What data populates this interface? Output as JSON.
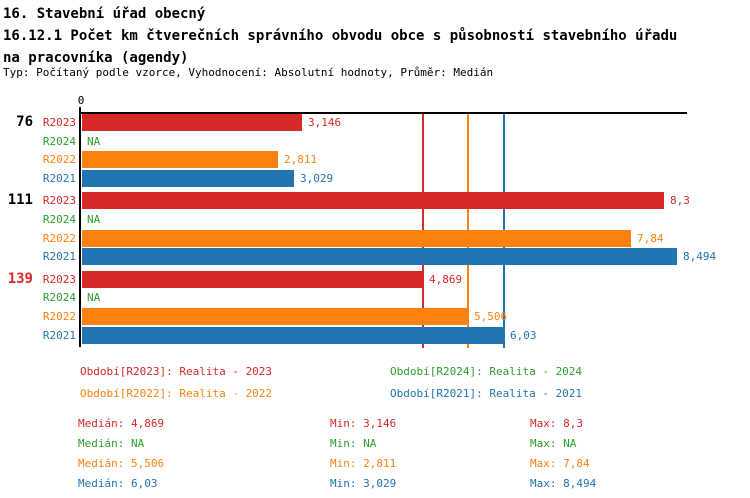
{
  "header": {
    "title_lines": [
      "16. Stavební úřad obecný",
      "16.12.1 Počet km čtverečních správního obvodu obce s působností stavebního úřadu",
      "na pracovníka (agendy)"
    ],
    "subtitle": "Typ: Počítaný podle vzorce, Vyhodnocení: Absolutní hodnoty, Průměr: Medián"
  },
  "colors": {
    "R2023": "#d62928",
    "R2024": "#2c9e2c",
    "R2022": "#fc810f",
    "R2021": "#2374b2",
    "axis": "#000000",
    "group_label_default": "#000000",
    "group_label_highlight": "#d62928"
  },
  "chart_data": {
    "type": "bar",
    "orientation": "horizontal",
    "x_axis": {
      "zero_tick_label": "0",
      "x_min": 0,
      "x_max": 8.62,
      "grid": false
    },
    "series_order": [
      "R2023",
      "R2024",
      "R2022",
      "R2021"
    ],
    "na_text": "NA",
    "groups": [
      {
        "label": "76",
        "highlight": false,
        "bars": [
          {
            "series": "R2023",
            "value": 3.146,
            "display": "3,146"
          },
          {
            "series": "R2024",
            "value": null,
            "display": "NA"
          },
          {
            "series": "R2022",
            "value": 2.811,
            "display": "2,811"
          },
          {
            "series": "R2021",
            "value": 3.029,
            "display": "3,029"
          }
        ]
      },
      {
        "label": "111",
        "highlight": false,
        "bars": [
          {
            "series": "R2023",
            "value": 8.3,
            "display": "8,3"
          },
          {
            "series": "R2024",
            "value": null,
            "display": "NA"
          },
          {
            "series": "R2022",
            "value": 7.84,
            "display": "7,84"
          },
          {
            "series": "R2021",
            "value": 8.494,
            "display": "8,494"
          }
        ]
      },
      {
        "label": "139",
        "highlight": true,
        "bars": [
          {
            "series": "R2023",
            "value": 4.869,
            "display": "4,869"
          },
          {
            "series": "R2024",
            "value": null,
            "display": "NA"
          },
          {
            "series": "R2022",
            "value": 5.506,
            "display": "5,506"
          },
          {
            "series": "R2021",
            "value": 6.03,
            "display": "6,03"
          }
        ]
      }
    ],
    "median_reference_lines": [
      {
        "series": "R2023",
        "value": 4.869
      },
      {
        "series": "R2022",
        "value": 5.506
      },
      {
        "series": "R2021",
        "value": 6.03
      }
    ]
  },
  "legend": [
    {
      "series": "R2023",
      "text": "Období[R2023]: Realita - 2023"
    },
    {
      "series": "R2024",
      "text": "Období[R2024]: Realita - 2024"
    },
    {
      "series": "R2022",
      "text": "Období[R2022]: Realita - 2022"
    },
    {
      "series": "R2021",
      "text": "Období[R2021]: Realita - 2021"
    }
  ],
  "stats": [
    {
      "series": "R2023",
      "median": "Medián: 4,869",
      "min": "Min: 3,146",
      "max": "Max: 8,3"
    },
    {
      "series": "R2024",
      "median": "Medián: NA",
      "min": "Min: NA",
      "max": "Max: NA"
    },
    {
      "series": "R2022",
      "median": "Medián: 5,506",
      "min": "Min: 2,811",
      "max": "Max: 7,84"
    },
    {
      "series": "R2021",
      "median": "Medián: 6,03",
      "min": "Min: 3,029",
      "max": "Max: 8,494"
    }
  ]
}
